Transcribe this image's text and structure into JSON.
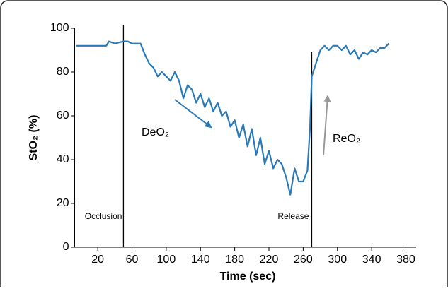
{
  "chart_data": {
    "type": "line",
    "x_label": "Time (sec)",
    "y_label": "StO₂ (%)",
    "x": [
      -5,
      0,
      10,
      20,
      30,
      33,
      40,
      50,
      55,
      60,
      65,
      70,
      75,
      80,
      85,
      90,
      95,
      100,
      105,
      110,
      115,
      120,
      125,
      130,
      135,
      140,
      145,
      150,
      155,
      160,
      165,
      170,
      175,
      180,
      185,
      190,
      195,
      200,
      205,
      210,
      215,
      220,
      225,
      230,
      235,
      240,
      245,
      250,
      255,
      260,
      265,
      268,
      270,
      275,
      280,
      285,
      290,
      295,
      300,
      305,
      310,
      315,
      320,
      325,
      330,
      335,
      340,
      345,
      350,
      355,
      360
    ],
    "values": [
      92,
      92,
      92,
      92,
      92,
      94,
      93,
      94,
      94,
      93,
      93,
      93,
      88,
      84,
      82,
      78,
      80,
      78,
      76,
      80,
      76,
      68,
      74,
      72,
      66,
      70,
      64,
      68,
      62,
      66,
      60,
      62,
      55,
      58,
      50,
      56,
      46,
      54,
      42,
      50,
      38,
      44,
      36,
      40,
      38,
      32,
      24,
      36,
      30,
      30,
      35,
      55,
      78,
      84,
      90,
      92,
      90,
      92,
      92,
      90,
      92,
      88,
      90,
      86,
      89,
      88,
      90,
      89,
      91,
      91,
      93
    ],
    "color": "#2a7ab9",
    "xlim": [
      -7,
      392
    ],
    "xticks": [
      20,
      60,
      100,
      140,
      180,
      220,
      260,
      300,
      340,
      380
    ],
    "ylim": [
      0,
      100
    ],
    "yticks": [
      0,
      20,
      40,
      60,
      80,
      100
    ],
    "events": [
      {
        "x": 50,
        "label": "Occlusion"
      },
      {
        "x": 270,
        "label": "Release"
      }
    ],
    "annotations": [
      {
        "text": "DeO₂",
        "color": "#2a7ab9"
      },
      {
        "text": "ReO₂",
        "color": "#999999"
      }
    ]
  }
}
